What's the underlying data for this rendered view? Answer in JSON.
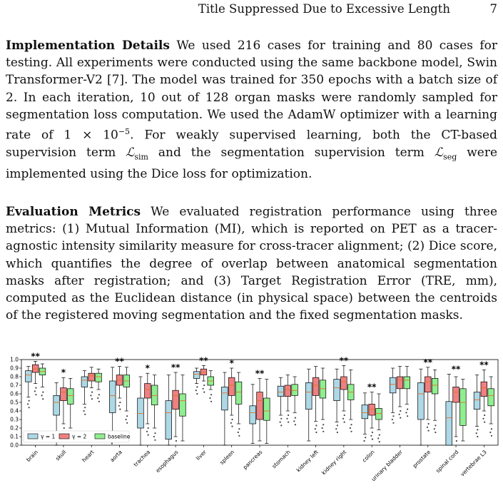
{
  "header": {
    "title": "Title Suppressed Due to Excessive Length",
    "page_number": "7"
  },
  "impl": {
    "heading": "Implementation Details",
    "text_a": " We used 216 cases for training and 80 cases for testing. All experiments were conducted using the same backbone model, Swin Transformer-V2 [7]. The model was trained for 350 epochs with a batch size of 2. In each iteration, 10 out of 128 organ masks were randomly sampled for segmentation loss computation. We used the AdamW optimizer with a learning rate of 1 × 10",
    "text_exp": "−5",
    "text_b": ". For weakly supervised learning, both the CT-based supervision term ",
    "loss_sim_main": "ℒ",
    "loss_sim_sub": "sim",
    "text_c": " and the segmentation supervision term ",
    "loss_seg_main": "ℒ",
    "loss_seg_sub": "seg",
    "text_d": " were implemented using the Dice loss for optimization."
  },
  "eval": {
    "heading": "Evaluation Metrics",
    "text": " We evaluated registration performance using three metrics: (1) Mutual Information (MI), which is reported on PET as a tracer-agnostic intensity similarity measure for cross-tracer alignment; (2) Dice score, which quantifies the degree of overlap between anatomical segmentation masks after registration; and (3) Target Registration Error (TRE, mm), computed as the Euclidean distance (in physical space) between the centroids of the registered moving segmentation and the fixed segmentation masks."
  },
  "chart_data": {
    "type": "box",
    "categories": [
      "brain",
      "skull",
      "heart",
      "aorta",
      "trachea",
      "esophagus",
      "liver",
      "spleen",
      "pancreas",
      "stomach",
      "kidney left",
      "kidney right",
      "colon",
      "urinary bladder",
      "prostate",
      "spinal cord",
      "vertebrae L3"
    ],
    "significance": [
      "**",
      "*",
      "",
      "**",
      "*",
      "**",
      "**",
      "*",
      "**",
      "",
      "",
      "**",
      "**",
      "",
      "**",
      "**",
      "**"
    ],
    "ylim": [
      0,
      1.0
    ],
    "yticks": [
      "0.0",
      "0.1",
      "0.2",
      "0.3",
      "0.4",
      "0.5",
      "0.6",
      "0.7",
      "0.8",
      "0.9",
      "1.0"
    ],
    "colors": {
      "γ = 1": "#add8e6",
      "γ = 2": "#f08080",
      "baseline": "#90ee90"
    },
    "legend_position": "bottom-left",
    "series": [
      {
        "name": "γ = 1",
        "boxes": [
          [
            0.56,
            0.74,
            0.82,
            0.87,
            0.92
          ],
          [
            0.0,
            0.35,
            0.5,
            0.58,
            0.73
          ],
          [
            0.48,
            0.68,
            0.76,
            0.8,
            0.87
          ],
          [
            0.1,
            0.38,
            0.58,
            0.75,
            0.91
          ],
          [
            0.0,
            0.2,
            0.37,
            0.55,
            0.8
          ],
          [
            0.0,
            0.07,
            0.38,
            0.52,
            0.82
          ],
          [
            0.72,
            0.78,
            0.83,
            0.86,
            0.9
          ],
          [
            0.0,
            0.41,
            0.61,
            0.68,
            0.85
          ],
          [
            0.02,
            0.25,
            0.38,
            0.46,
            0.71
          ],
          [
            0.35,
            0.57,
            0.62,
            0.69,
            0.79
          ],
          [
            0.05,
            0.42,
            0.62,
            0.73,
            0.89
          ],
          [
            0.27,
            0.52,
            0.67,
            0.77,
            0.89
          ],
          [
            0.13,
            0.31,
            0.38,
            0.47,
            0.61
          ],
          [
            0.38,
            0.61,
            0.71,
            0.79,
            0.9
          ],
          [
            0.0,
            0.3,
            0.6,
            0.73,
            0.89
          ],
          [
            0.0,
            0.0,
            0.32,
            0.51,
            0.83
          ],
          [
            0.22,
            0.42,
            0.53,
            0.62,
            0.82
          ]
        ]
      },
      {
        "name": "γ = 2",
        "boxes": [
          [
            0.72,
            0.85,
            0.89,
            0.94,
            0.98
          ],
          [
            0.25,
            0.52,
            0.62,
            0.67,
            0.79
          ],
          [
            0.67,
            0.75,
            0.81,
            0.84,
            0.91
          ],
          [
            0.55,
            0.7,
            0.76,
            0.82,
            0.92
          ],
          [
            0.25,
            0.55,
            0.65,
            0.72,
            0.84
          ],
          [
            0.1,
            0.42,
            0.58,
            0.64,
            0.85
          ],
          [
            0.75,
            0.82,
            0.85,
            0.89,
            0.93
          ],
          [
            0.35,
            0.58,
            0.7,
            0.79,
            0.9
          ],
          [
            0.05,
            0.3,
            0.52,
            0.62,
            0.78
          ],
          [
            0.4,
            0.57,
            0.65,
            0.7,
            0.82
          ],
          [
            0.28,
            0.58,
            0.7,
            0.79,
            0.92
          ],
          [
            0.4,
            0.65,
            0.74,
            0.8,
            0.93
          ],
          [
            0.2,
            0.35,
            0.42,
            0.48,
            0.62
          ],
          [
            0.45,
            0.66,
            0.76,
            0.8,
            0.92
          ],
          [
            0.3,
            0.62,
            0.74,
            0.8,
            0.91
          ],
          [
            0.1,
            0.5,
            0.62,
            0.68,
            0.8
          ],
          [
            0.4,
            0.57,
            0.67,
            0.74,
            0.88
          ]
        ]
      },
      {
        "name": "baseline",
        "boxes": [
          [
            0.68,
            0.82,
            0.86,
            0.9,
            0.95
          ],
          [
            0.2,
            0.48,
            0.58,
            0.66,
            0.78
          ],
          [
            0.65,
            0.74,
            0.8,
            0.84,
            0.89
          ],
          [
            0.4,
            0.68,
            0.75,
            0.82,
            0.91
          ],
          [
            0.2,
            0.47,
            0.58,
            0.7,
            0.82
          ],
          [
            0.05,
            0.34,
            0.52,
            0.6,
            0.82
          ],
          [
            0.65,
            0.7,
            0.75,
            0.8,
            0.87
          ],
          [
            0.25,
            0.48,
            0.62,
            0.74,
            0.85
          ],
          [
            0.02,
            0.29,
            0.4,
            0.55,
            0.77
          ],
          [
            0.38,
            0.58,
            0.64,
            0.71,
            0.8
          ],
          [
            0.3,
            0.55,
            0.66,
            0.76,
            0.9
          ],
          [
            0.3,
            0.53,
            0.62,
            0.71,
            0.88
          ],
          [
            0.18,
            0.3,
            0.37,
            0.43,
            0.6
          ],
          [
            0.48,
            0.66,
            0.76,
            0.8,
            0.92
          ],
          [
            0.29,
            0.6,
            0.7,
            0.78,
            0.88
          ],
          [
            0.05,
            0.23,
            0.5,
            0.66,
            0.77
          ],
          [
            0.25,
            0.46,
            0.58,
            0.66,
            0.8
          ]
        ]
      }
    ]
  }
}
